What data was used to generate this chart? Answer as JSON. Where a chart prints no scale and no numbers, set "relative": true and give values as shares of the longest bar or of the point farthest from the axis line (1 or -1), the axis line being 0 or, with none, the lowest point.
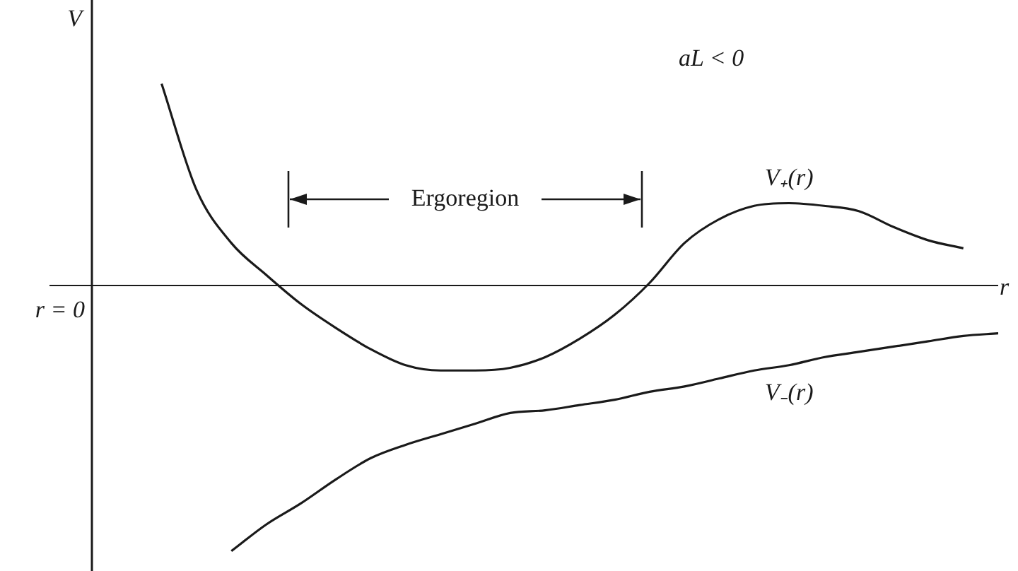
{
  "chart_data": {
    "type": "line",
    "relative": true,
    "xlabel": "r",
    "ylabel": "V",
    "legend": false,
    "grid": false,
    "marker": "none",
    "tick_labels": false,
    "categories": [
      null,
      null,
      null,
      null,
      null,
      null,
      null,
      null,
      null,
      null,
      null,
      null,
      null,
      null,
      null,
      null,
      null,
      null,
      null,
      null,
      null,
      null,
      null,
      null,
      null,
      null,
      null
    ],
    "series": [
      {
        "name": "V₊(r)",
        "color": "#1a1a1a",
        "values": [
          null,
          null,
          0.76,
          0.36,
          0.16,
          0.04,
          -0.07,
          -0.16,
          -0.24,
          -0.3,
          -0.32,
          -0.32,
          -0.31,
          -0.27,
          -0.2,
          -0.11,
          0.01,
          0.16,
          0.25,
          0.3,
          0.31,
          0.3,
          0.28,
          0.22,
          0.17,
          0.14,
          null
        ]
      },
      {
        "name": "V₋(r)",
        "color": "#1a1a1a",
        "values": [
          null,
          null,
          null,
          null,
          -1,
          -0.9,
          -0.82,
          -0.73,
          -0.65,
          -0.6,
          -0.56,
          -0.52,
          -0.48,
          -0.47,
          -0.45,
          -0.43,
          -0.4,
          -0.38,
          -0.35,
          -0.32,
          -0.3,
          -0.27,
          -0.25,
          -0.23,
          -0.21,
          -0.19,
          -0.18
        ]
      }
    ],
    "annotations": [
      "r = 0",
      "aL < 0",
      "Ergoregion"
    ]
  }
}
